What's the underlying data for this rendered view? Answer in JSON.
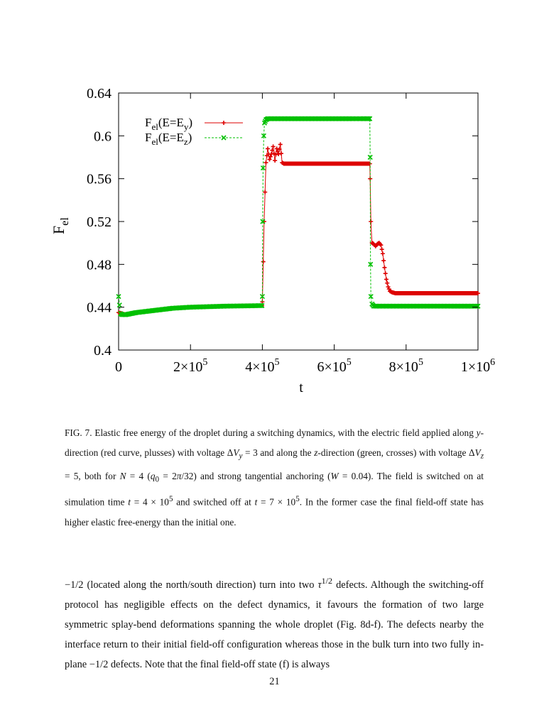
{
  "chart_data": {
    "type": "line",
    "xlabel": "t",
    "ylabel_main": "F",
    "ylabel_sub": "el",
    "xlim": [
      0,
      1000000
    ],
    "ylim": [
      0.4,
      0.64
    ],
    "y_ticks": [
      0.4,
      0.44,
      0.48,
      0.52,
      0.56,
      0.6,
      0.64
    ],
    "y_tick_labels": [
      "0.4",
      "0.44",
      "0.48",
      "0.52",
      "0.56",
      "0.6",
      "0.64"
    ],
    "x_ticks": [
      0,
      200000,
      400000,
      600000,
      800000,
      1000000
    ],
    "x_tick_labels": [
      {
        "base": "0",
        "exp": ""
      },
      {
        "base": "2×10",
        "exp": "5"
      },
      {
        "base": "4×10",
        "exp": "5"
      },
      {
        "base": "6×10",
        "exp": "5"
      },
      {
        "base": "8×10",
        "exp": "5"
      },
      {
        "base": "1×10",
        "exp": "6"
      }
    ],
    "grid": false,
    "legend_position": "top-left",
    "series": [
      {
        "name": "Fel(E=Ey)",
        "legend": {
          "main": "F",
          "sub1": "el",
          "mid": "(E=E",
          "sub2": "y",
          "end": ")"
        },
        "color": "#dd0000",
        "marker": "plus",
        "x": [
          0,
          20000,
          50000,
          100000,
          150000,
          200000,
          250000,
          300000,
          350000,
          399000,
          400000,
          405000,
          410000,
          415000,
          420000,
          425000,
          430000,
          435000,
          440000,
          445000,
          450000,
          455000,
          460000,
          500000,
          550000,
          600000,
          650000,
          699000,
          700000,
          702000,
          705000,
          710000,
          715000,
          720000,
          725000,
          730000,
          735000,
          740000,
          745000,
          750000,
          755000,
          760000,
          770000,
          780000,
          800000,
          900000,
          1000000
        ],
        "y": [
          0.435,
          0.433,
          0.435,
          0.437,
          0.439,
          0.44,
          0.4405,
          0.441,
          0.4412,
          0.4415,
          0.445,
          0.52,
          0.575,
          0.588,
          0.578,
          0.583,
          0.59,
          0.577,
          0.588,
          0.583,
          0.592,
          0.575,
          0.574,
          0.574,
          0.574,
          0.574,
          0.574,
          0.574,
          0.56,
          0.52,
          0.5,
          0.499,
          0.497,
          0.499,
          0.5,
          0.498,
          0.49,
          0.477,
          0.466,
          0.459,
          0.455,
          0.454,
          0.453,
          0.453,
          0.453,
          0.453,
          0.453
        ]
      },
      {
        "name": "Fel(E=Ez)",
        "legend": {
          "main": "F",
          "sub1": "el",
          "mid": "(E=E",
          "sub2": "z",
          "end": ")"
        },
        "color": "#00c000",
        "marker": "cross",
        "x": [
          0,
          5000,
          10000,
          20000,
          50000,
          100000,
          150000,
          200000,
          250000,
          300000,
          350000,
          399000,
          400000,
          401000,
          402000,
          404000,
          406000,
          410000,
          415000,
          420000,
          450000,
          500000,
          550000,
          600000,
          650000,
          699000,
          700000,
          701000,
          702000,
          705000,
          710000,
          750000,
          800000,
          900000,
          1000000
        ],
        "y": [
          0.45,
          0.434,
          0.433,
          0.433,
          0.435,
          0.437,
          0.439,
          0.44,
          0.4405,
          0.441,
          0.4412,
          0.4415,
          0.45,
          0.52,
          0.57,
          0.6,
          0.612,
          0.615,
          0.616,
          0.616,
          0.616,
          0.616,
          0.616,
          0.616,
          0.616,
          0.616,
          0.58,
          0.48,
          0.45,
          0.443,
          0.441,
          0.441,
          0.441,
          0.441,
          0.441
        ]
      }
    ]
  },
  "caption": {
    "p1": "FIG. 7.  Elastic free energy of the droplet during a switching dynamics, with the electric field applied along ",
    "v1": "y",
    "p2": "-direction (red curve, plusses) with voltage Δ",
    "v2": "V",
    "s2": "y",
    "p3": " = 3 and along the ",
    "v3": "z",
    "p4": "-direction (green, crosses) with voltage Δ",
    "v4": "V",
    "s4": "z",
    "p5": " = 5, both for ",
    "v5": "N",
    "p6": " = 4 (",
    "v6": "q",
    "s6": "0",
    "p7": " = 2",
    "v7": "π",
    "p8": "/32) and strong tangential anchoring (",
    "v8": "W",
    "p9": " = 0.04). The field is switched on at simulation time ",
    "v9": "t",
    "p10": " = 4 × 10",
    "e10": "5",
    "p11": " and switched off at ",
    "v11": "t",
    "p12": " = 7 × 10",
    "e12": "5",
    "p13": ". In the former case the final field-off state has higher elastic free-energy than the initial one."
  },
  "body": {
    "p1": "−1/2 (located along the north/south direction) turn into two ",
    "v1": "τ",
    "e1": "1/2",
    "p2": " defects. Although the switching-off protocol has negligible effects on the defect dynamics, it favours the formation of two large symmetric splay-bend deformations spanning the whole droplet (Fig. 8d-f). The defects nearby the interface return to their initial field-off configuration whereas those in the bulk turn into two fully in-plane −1/2 defects. Note that the final field-off state (f) is always"
  },
  "page_number": "21"
}
